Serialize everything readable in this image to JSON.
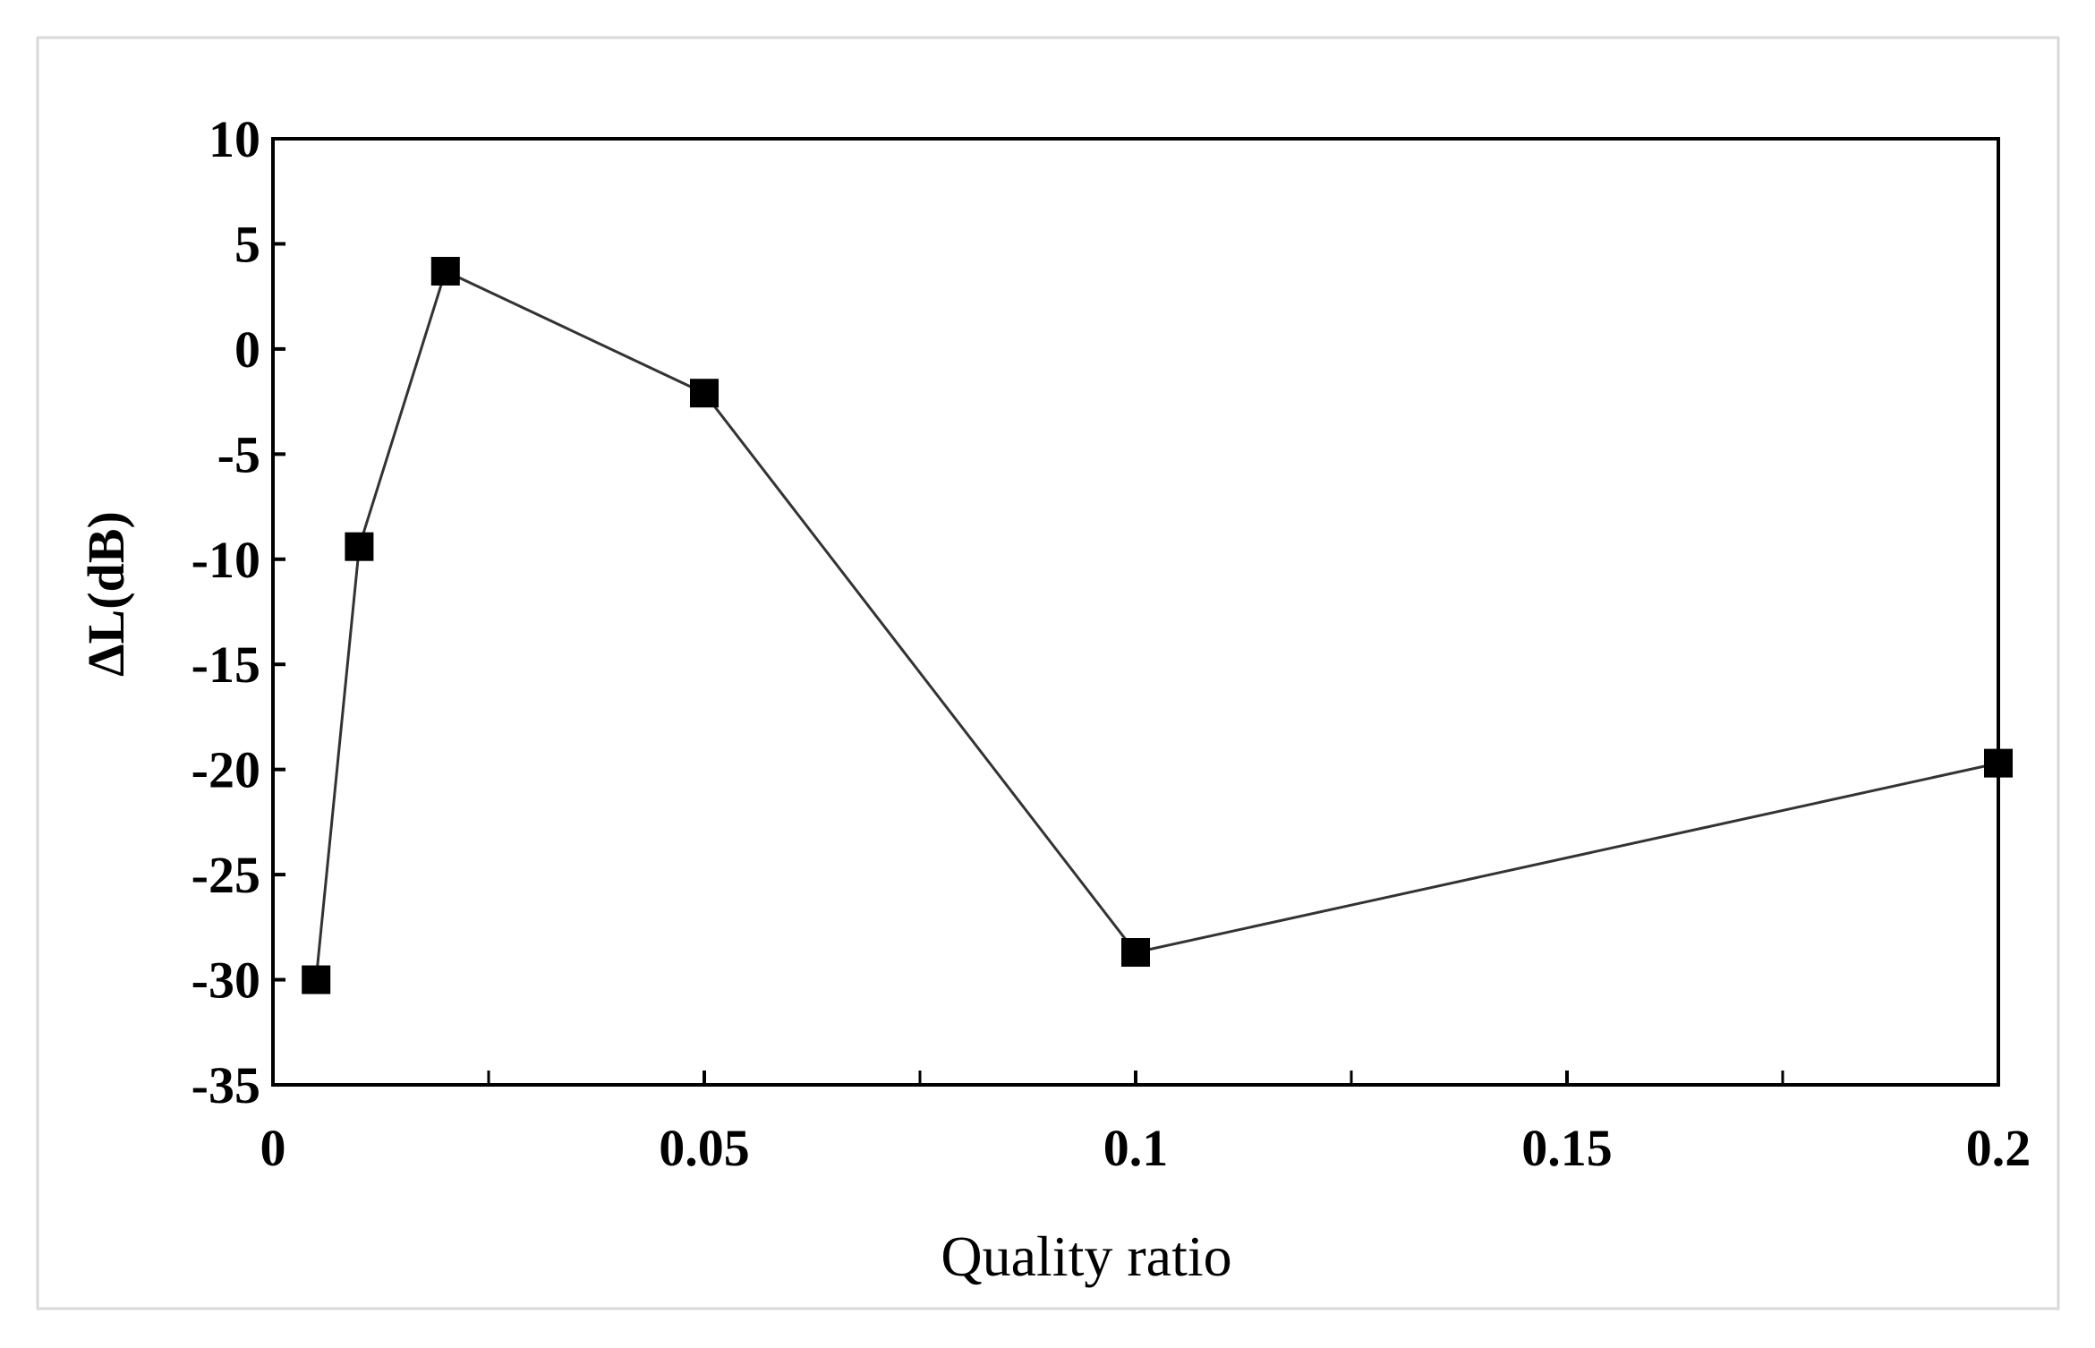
{
  "chart_data": {
    "type": "line",
    "title": "",
    "xlabel": "Quality ratio",
    "ylabel": "ΔL(dB)",
    "xlim": [
      0,
      0.2
    ],
    "ylim": [
      -35,
      10
    ],
    "x_ticks": [
      0,
      0.05,
      0.1,
      0.15,
      0.2
    ],
    "x_tick_labels": [
      "0",
      "0.05",
      "0.1",
      "0.15",
      "0.2"
    ],
    "x_minor_ticks": [
      0.025,
      0.075,
      0.125,
      0.175
    ],
    "y_ticks": [
      10,
      5,
      0,
      -5,
      -10,
      -15,
      -20,
      -25,
      -30,
      -35
    ],
    "y_tick_labels": [
      "10",
      "5",
      "0",
      "-5",
      "-10",
      "-15",
      "-20",
      "-25",
      "-30",
      "-35"
    ],
    "grid": false,
    "legend": "none",
    "series": [
      {
        "marker": "square",
        "color": "#000000",
        "points": [
          {
            "x": 0.005,
            "y": -30.0
          },
          {
            "x": 0.01,
            "y": -9.4
          },
          {
            "x": 0.02,
            "y": 3.7
          },
          {
            "x": 0.05,
            "y": -2.1
          },
          {
            "x": 0.1,
            "y": -28.7
          },
          {
            "x": 0.2,
            "y": -19.7
          }
        ]
      }
    ]
  }
}
